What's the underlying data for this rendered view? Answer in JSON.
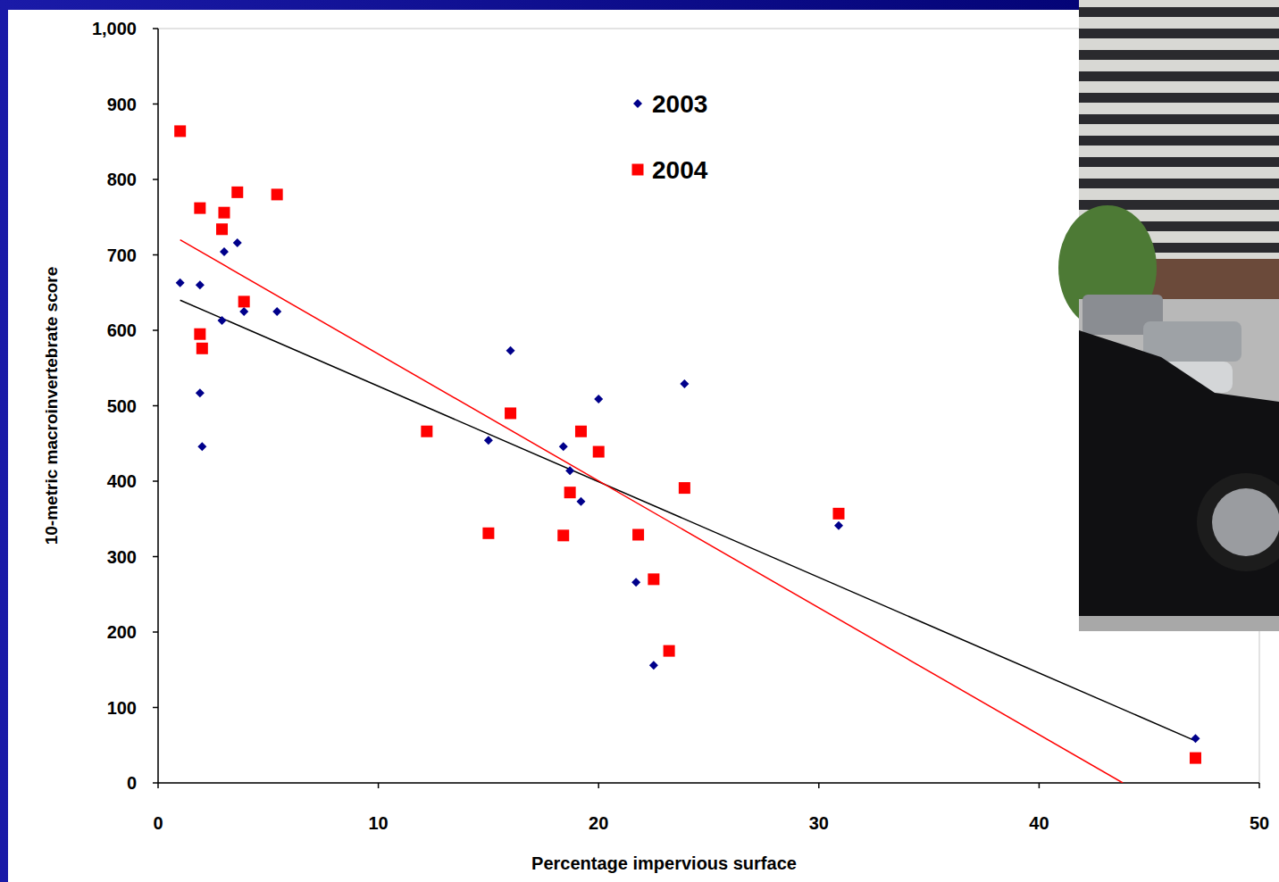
{
  "chart_data": {
    "type": "scatter",
    "x_label": "Percentage impervious surface",
    "y_label": "10-metric macroinvertebrate score",
    "xlim": [
      0,
      50
    ],
    "xticks": [
      0,
      10,
      20,
      30,
      40,
      50
    ],
    "ylim": [
      0,
      1000
    ],
    "yticks": [
      0,
      100,
      200,
      300,
      400,
      500,
      600,
      700,
      800,
      900,
      {
        "value": 1000,
        "label": "1,000"
      }
    ],
    "grid": false,
    "legend": "top",
    "series": [
      {
        "name": "2003",
        "color": "#00008b",
        "marker": "diamond",
        "x": [
          1.0,
          1.9,
          1.9,
          2.0,
          3.0,
          2.9,
          3.6,
          3.9,
          5.4,
          16.0,
          15.0,
          18.4,
          18.7,
          19.2,
          20.0,
          21.7,
          22.5,
          23.9,
          30.9,
          47.1
        ],
        "values": [
          663,
          660,
          517,
          446,
          704,
          613,
          716,
          625,
          625,
          573,
          454,
          446,
          414,
          373,
          509,
          266,
          156,
          529,
          341,
          59
        ]
      },
      {
        "name": "2004",
        "color": "#ff0000",
        "marker": "square",
        "x": [
          1.0,
          1.9,
          1.9,
          2.0,
          2.9,
          3.0,
          3.6,
          3.9,
          5.4,
          12.2,
          15.0,
          16.0,
          18.4,
          18.7,
          19.2,
          20.0,
          21.8,
          22.5,
          23.2,
          23.9,
          30.9,
          47.1
        ],
        "values": [
          864,
          762,
          595,
          576,
          734,
          756,
          783,
          638,
          780,
          466,
          331,
          490,
          328,
          385,
          466,
          439,
          329,
          270,
          175,
          391,
          357,
          33
        ]
      },
      {
        "type": "line",
        "color": "#000000",
        "line_style": "solid",
        "x": [
          1,
          47
        ],
        "values": [
          640,
          57
        ]
      },
      {
        "type": "line",
        "color": "#ff0000",
        "line_style": "solid",
        "x": [
          1,
          43.8
        ],
        "values": [
          720,
          0
        ]
      }
    ]
  }
}
